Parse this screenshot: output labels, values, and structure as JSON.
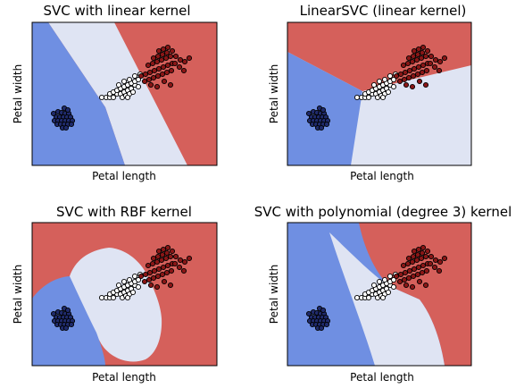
{
  "colors": {
    "class_0": "#6f8fe2",
    "class_1": "#dfe4f3",
    "class_2": "#d5605b",
    "point_class_0": "#1f2a6b",
    "point_class_1": "#ffffff",
    "point_class_2": "#8a1616"
  },
  "chart_data": [
    {
      "type": "scatter",
      "title": "SVC with linear kernel",
      "xlabel": "Petal length",
      "ylabel": "Petal width",
      "grid": false,
      "regions": "decision regions for 3 classes (blue, light, red)",
      "series": []
    },
    {
      "type": "scatter",
      "title": "LinearSVC (linear kernel)",
      "xlabel": "Petal length",
      "ylabel": "Petal width",
      "grid": false,
      "regions": "decision regions for 3 classes (blue, light, red)",
      "series": []
    },
    {
      "type": "scatter",
      "title": "SVC with RBF kernel",
      "xlabel": "Petal length",
      "ylabel": "Petal width",
      "grid": false,
      "regions": "decision regions for 3 classes (blue, light, red)",
      "series": []
    },
    {
      "type": "scatter",
      "title": "SVC with polynomial (degree 3) kernel",
      "xlabel": "Petal length",
      "ylabel": "Petal width",
      "grid": false,
      "regions": "decision regions for 3 classes (blue, light, red)",
      "series": []
    }
  ]
}
